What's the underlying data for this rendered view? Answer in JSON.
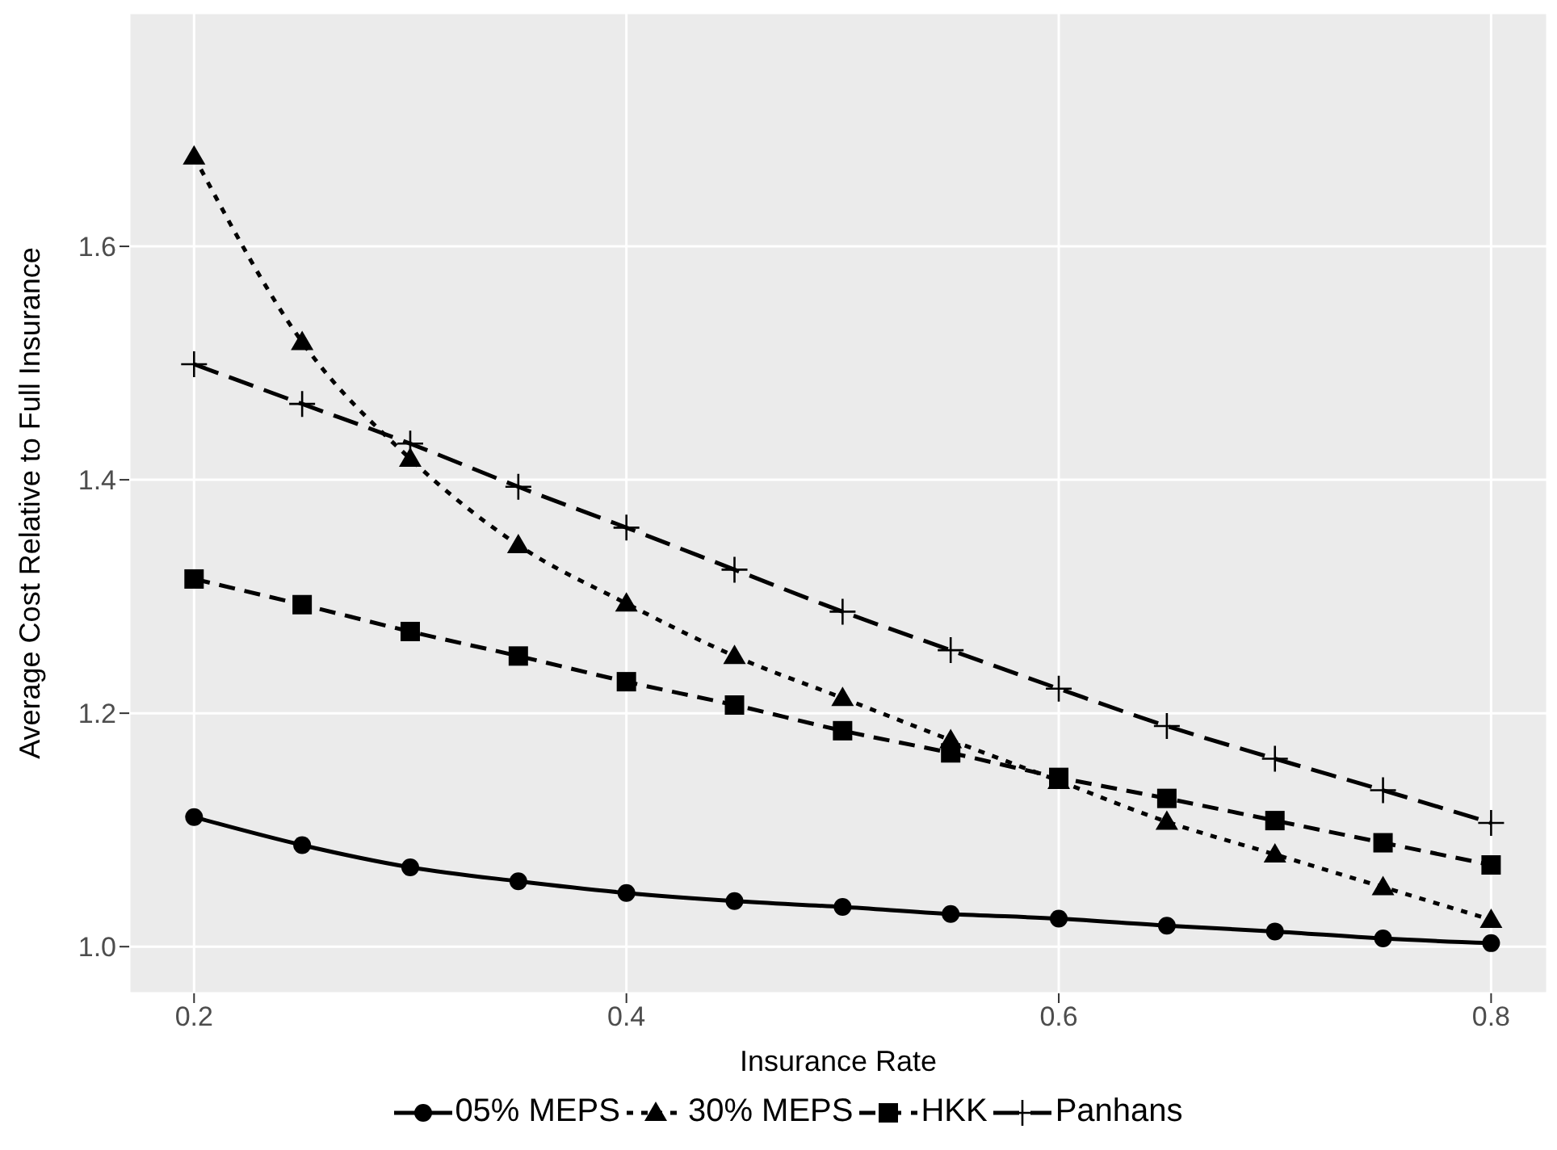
{
  "chart_data": {
    "type": "line",
    "xlabel": "Insurance Rate",
    "ylabel": "Average Cost Relative to Full Insurance",
    "x": [
      0.2,
      0.25,
      0.3,
      0.35,
      0.4,
      0.45,
      0.5,
      0.55,
      0.6,
      0.65,
      0.7,
      0.75,
      0.8
    ],
    "series": [
      {
        "name": "05% MEPS",
        "color": "#000000",
        "marker": "circle",
        "line_style": "solid",
        "values": [
          1.111,
          1.087,
          1.068,
          1.056,
          1.046,
          1.039,
          1.034,
          1.028,
          1.024,
          1.018,
          1.013,
          1.007,
          1.003
        ]
      },
      {
        "name": "30% MEPS",
        "color": "#000000",
        "marker": "triangle",
        "line_style": "dotted",
        "values": [
          1.677,
          1.518,
          1.418,
          1.344,
          1.294,
          1.249,
          1.213,
          1.177,
          1.142,
          1.107,
          1.079,
          1.051,
          1.023
        ]
      },
      {
        "name": "HKK",
        "color": "#000000",
        "marker": "square",
        "line_style": "dashed",
        "values": [
          1.315,
          1.293,
          1.27,
          1.249,
          1.227,
          1.207,
          1.185,
          1.166,
          1.145,
          1.127,
          1.108,
          1.089,
          1.07
        ]
      },
      {
        "name": "Panhans",
        "color": "#000000",
        "marker": "cross",
        "line_style": "longdash",
        "values": [
          1.499,
          1.465,
          1.431,
          1.394,
          1.359,
          1.323,
          1.287,
          1.254,
          1.221,
          1.189,
          1.161,
          1.134,
          1.106
        ]
      }
    ],
    "xlim": [
      0.17,
      0.826
    ],
    "xticks": [
      0.2,
      0.4,
      0.6,
      0.8
    ],
    "ylim": [
      0.96,
      1.8
    ],
    "yticks": [
      {
        "value": 1,
        "label": "1.0"
      },
      1.2,
      1.4,
      1.6
    ],
    "grid": true,
    "legend": "bottom"
  }
}
